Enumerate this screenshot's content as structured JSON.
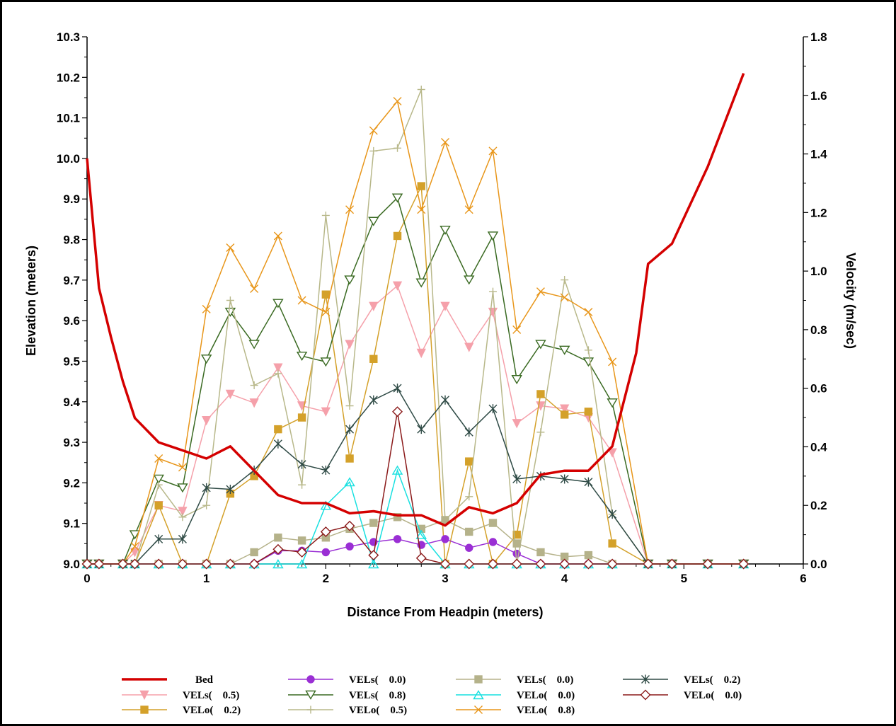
{
  "chart_data": {
    "type": "line",
    "xlabel": "Distance From Headpin (meters)",
    "ylabel": "Elevation (meters)",
    "y2label": "Velocity (m/sec)",
    "xlim": [
      0,
      6
    ],
    "ylim": [
      9.0,
      10.3
    ],
    "y2lim": [
      0.0,
      1.8
    ],
    "xticks": [
      "0",
      "1",
      "2",
      "3",
      "4",
      "5",
      "6"
    ],
    "yticks": [
      "9.0",
      "9.1",
      "9.2",
      "9.3",
      "9.4",
      "9.5",
      "9.6",
      "9.7",
      "9.8",
      "9.9",
      "10.0",
      "10.1",
      "10.2",
      "10.3"
    ],
    "y2ticks": [
      "0.0",
      "0.2",
      "0.4",
      "0.6",
      "0.8",
      "1.0",
      "1.2",
      "1.4",
      "1.6",
      "1.8"
    ],
    "grid": false,
    "legend_position": "bottom",
    "bed": {
      "name": "Bed",
      "color": "#d40000",
      "x": [
        0,
        0.1,
        0.2,
        0.3,
        0.4,
        0.6,
        0.8,
        1.0,
        1.2,
        1.4,
        1.6,
        1.8,
        2.0,
        2.2,
        2.4,
        2.6,
        2.8,
        3.0,
        3.2,
        3.4,
        3.6,
        3.8,
        4.0,
        4.2,
        4.4,
        4.6,
        4.7,
        4.9,
        5.2,
        5.5
      ],
      "y": [
        10.0,
        9.68,
        9.56,
        9.45,
        9.36,
        9.3,
        9.28,
        9.26,
        9.29,
        9.23,
        9.17,
        9.15,
        9.15,
        9.125,
        9.13,
        9.12,
        9.12,
        9.095,
        9.14,
        9.125,
        9.15,
        9.22,
        9.23,
        9.23,
        9.29,
        9.52,
        9.74,
        9.79,
        9.98,
        10.21
      ]
    },
    "x": [
      0,
      0.1,
      0.3,
      0.4,
      0.6,
      0.8,
      1.0,
      1.2,
      1.4,
      1.6,
      1.8,
      2.0,
      2.2,
      2.4,
      2.6,
      2.8,
      3.0,
      3.2,
      3.4,
      3.6,
      3.8,
      4.0,
      4.2,
      4.4,
      4.7,
      4.9,
      5.2,
      5.5
    ],
    "series": [
      {
        "name": "VELs(    0.5)",
        "color": "#f5a0aa",
        "marker": "tri-down-filled",
        "values": [
          0,
          0,
          0,
          0.04,
          0.2,
          0.18,
          0.49,
          0.58,
          0.55,
          0.67,
          0.54,
          0.52,
          0.75,
          0.88,
          0.95,
          0.72,
          0.88,
          0.74,
          0.86,
          0.48,
          0.54,
          0.53,
          0.5,
          0.38,
          0,
          0,
          0,
          0
        ]
      },
      {
        "name": "VELo(    0.2)",
        "color": "#d4a12a",
        "marker": "square-filled",
        "values": [
          0,
          0,
          0,
          0,
          0.2,
          0,
          0,
          0.24,
          0.3,
          0.46,
          0.5,
          0.92,
          0.36,
          0.7,
          1.12,
          1.29,
          0,
          0.35,
          0,
          0.1,
          0.58,
          0.51,
          0.52,
          0.07,
          0,
          0,
          0,
          0
        ]
      },
      {
        "name": "VELs(    0.0)",
        "color": "#9a2fd4",
        "marker": "circle-filled",
        "values": [
          0,
          0,
          0,
          0,
          0,
          0,
          0,
          0,
          0,
          0.045,
          0.045,
          0.04,
          0.06,
          0.075,
          0.085,
          0.065,
          0.085,
          0.055,
          0.075,
          0.035,
          0,
          0,
          0,
          0,
          0,
          0,
          0,
          0
        ]
      },
      {
        "name": "VELs(    0.8)",
        "color": "#3a6a22",
        "marker": "tri-down-open",
        "values": [
          0,
          0,
          0,
          0.1,
          0.29,
          0.26,
          0.7,
          0.86,
          0.75,
          0.89,
          0.71,
          0.69,
          0.97,
          1.17,
          1.25,
          0.96,
          1.14,
          0.97,
          1.12,
          0.63,
          0.75,
          0.73,
          0.69,
          0.55,
          0,
          0,
          0,
          0
        ]
      },
      {
        "name": "VELo(    0.5)",
        "color": "#b8b88a",
        "marker": "plus",
        "values": [
          0,
          0,
          0,
          0,
          0.27,
          0.16,
          0.2,
          0.9,
          0.61,
          0.65,
          0.27,
          1.19,
          0.54,
          1.41,
          1.42,
          1.62,
          0.15,
          0.23,
          0.93,
          0,
          0.45,
          0.97,
          0.73,
          0.17,
          0,
          0,
          0,
          0
        ]
      },
      {
        "name": "VELs(    0.0)",
        "color": "#b5b28a",
        "marker": "square-filled",
        "values": [
          0,
          0,
          0,
          0,
          0,
          0,
          0,
          0,
          0.04,
          0.09,
          0.08,
          0.09,
          0.12,
          0.14,
          0.16,
          0.12,
          0.15,
          0.11,
          0.14,
          0.07,
          0.04,
          0.025,
          0.03,
          0,
          0,
          0,
          0,
          0
        ]
      },
      {
        "name": "VELo(    0.0)",
        "color": "#17e0e0",
        "marker": "tri-up-open",
        "values": [
          0,
          0,
          0,
          0,
          0,
          0,
          0,
          0,
          0,
          0,
          0,
          0.2,
          0.28,
          0,
          0.32,
          0.1,
          0,
          0,
          0,
          0,
          0,
          0,
          0,
          0,
          0,
          0,
          0,
          0
        ]
      },
      {
        "name": "VELo(    0.8)",
        "color": "#e8961a",
        "marker": "x",
        "values": [
          0,
          0,
          0,
          0.06,
          0.36,
          0.33,
          0.87,
          1.08,
          0.94,
          1.12,
          0.9,
          0.86,
          1.21,
          1.48,
          1.58,
          1.21,
          1.44,
          1.21,
          1.41,
          0.8,
          0.93,
          0.91,
          0.86,
          0.69,
          0,
          0,
          0,
          0
        ]
      },
      {
        "name": "VELs(    0.2)",
        "color": "#2e4a45",
        "marker": "asterisk",
        "values": [
          0,
          0,
          0,
          0,
          0.085,
          0.085,
          0.26,
          0.255,
          0.32,
          0.41,
          0.34,
          0.32,
          0.46,
          0.56,
          0.6,
          0.46,
          0.56,
          0.45,
          0.53,
          0.29,
          0.3,
          0.29,
          0.28,
          0.17,
          0,
          0,
          0,
          0
        ]
      },
      {
        "name": "VELo(    0.0)",
        "color": "#8b1a1a",
        "marker": "diamond-open",
        "values": [
          0,
          0,
          0,
          0,
          0,
          0,
          0,
          0,
          0,
          0.05,
          0.04,
          0.11,
          0.13,
          0.03,
          0.52,
          0.02,
          0,
          0,
          0,
          0,
          0,
          0,
          0,
          0,
          0,
          0,
          0,
          0
        ]
      }
    ]
  }
}
